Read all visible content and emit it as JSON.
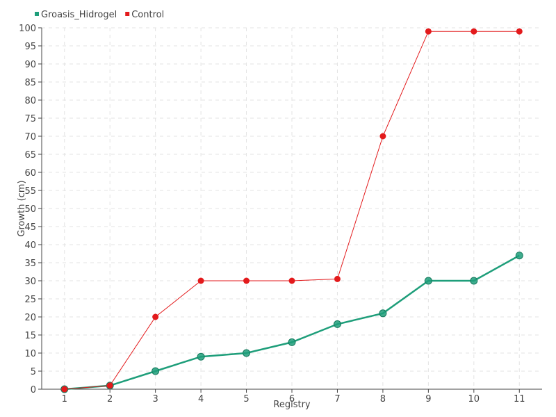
{
  "chart_data": {
    "type": "line",
    "xlabel": "Registry",
    "ylabel": "Growth (cm)",
    "x": [
      1,
      2,
      3,
      4,
      5,
      6,
      7,
      8,
      9,
      10,
      11
    ],
    "ylim": [
      0,
      100
    ],
    "y_ticks": [
      0,
      5,
      10,
      15,
      20,
      25,
      30,
      35,
      40,
      45,
      50,
      55,
      60,
      65,
      70,
      75,
      80,
      85,
      90,
      95,
      100
    ],
    "grid": true,
    "legend_position": "top-left",
    "series": [
      {
        "name": "Groasis_Hidrogel",
        "color": "#1e9e7a",
        "values": [
          0,
          1,
          5,
          9,
          10,
          13,
          18,
          21,
          30,
          30,
          37
        ]
      },
      {
        "name": "Control",
        "color": "#e31a1c",
        "values": [
          0,
          1,
          20,
          30,
          30,
          30,
          30.5,
          70,
          99,
          99,
          99
        ]
      }
    ]
  }
}
